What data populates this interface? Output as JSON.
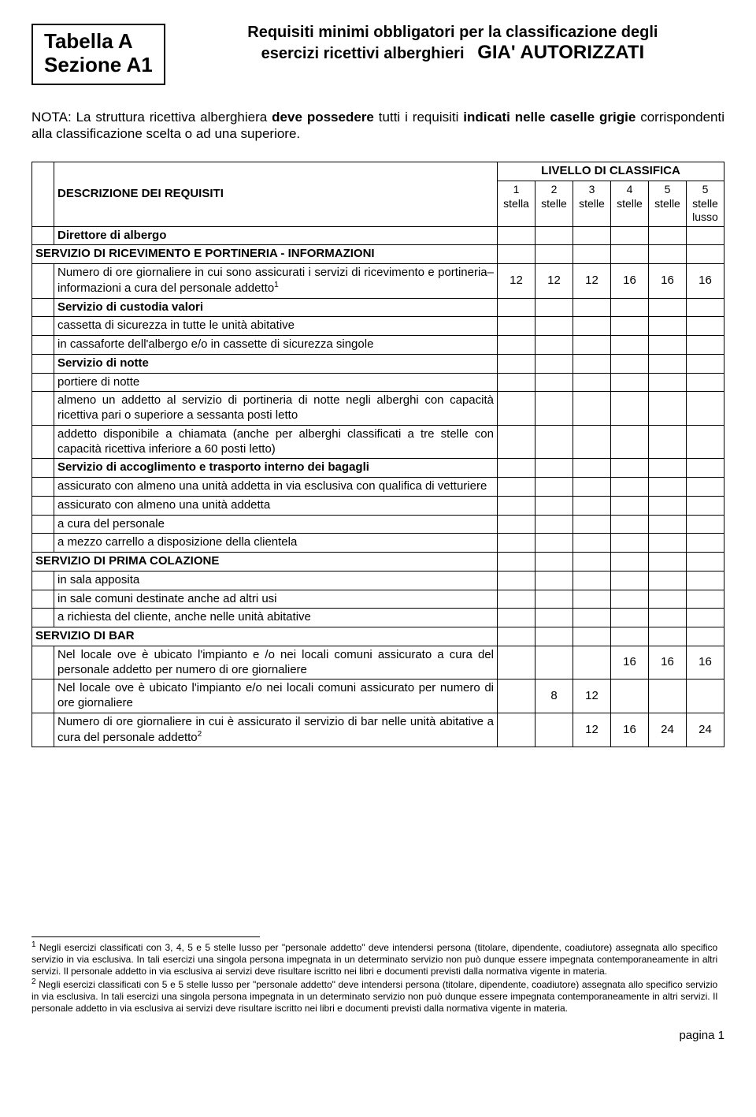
{
  "header": {
    "table_label": "Tabella  A",
    "section_label": "Sezione A1",
    "title_line1": "Requisiti minimi obbligatori per la classificazione degli",
    "title_line2_a": "esercizi ricettivi alberghieri",
    "title_line2_b": "GIA' AUTORIZZATI"
  },
  "note": {
    "prefix": "NOTA: La struttura ricettiva alberghiera ",
    "bold1": "deve possedere",
    "mid1": " tutti i requisiti ",
    "bold2": "indicati nelle caselle grigie",
    "suffix": " corrispondenti alla classificazione scelta o ad una superiore."
  },
  "table": {
    "desc_header": "DESCRIZIONE DEI REQUISITI",
    "level_header": "LIVELLO DI CLASSIFICA",
    "cols": [
      {
        "n": "1",
        "s": "stella"
      },
      {
        "n": "2",
        "s": "stelle"
      },
      {
        "n": "3",
        "s": "stelle"
      },
      {
        "n": "4",
        "s": "stelle"
      },
      {
        "n": "5",
        "s": "stelle"
      },
      {
        "n": "5",
        "s": "stelle lusso"
      }
    ],
    "rows": [
      {
        "type": "indent",
        "label": "Direttore di albergo",
        "bold": true,
        "vals": [
          "",
          "",
          "",
          "",
          "",
          ""
        ]
      },
      {
        "type": "full",
        "label": "SERVIZIO DI RICEVIMENTO E PORTINERIA - INFORMAZIONI",
        "bold": true,
        "vals": [
          "",
          "",
          "",
          "",
          "",
          ""
        ]
      },
      {
        "type": "indent",
        "label": "Numero di ore giornaliere in cui sono assicurati i servizi di ricevimento e portineria–informazioni a cura del personale addetto",
        "sup": "1",
        "justify": true,
        "vals": [
          "12",
          "12",
          "12",
          "16",
          "16",
          "16"
        ]
      },
      {
        "type": "indent",
        "label": "Servizio di custodia valori",
        "bold": true,
        "vals": [
          "",
          "",
          "",
          "",
          "",
          ""
        ]
      },
      {
        "type": "indent",
        "label": "cassetta di sicurezza in tutte le unità abitative",
        "vals": [
          "",
          "",
          "",
          "",
          "",
          ""
        ]
      },
      {
        "type": "indent",
        "label": "in cassaforte dell'albergo e/o in cassette di sicurezza singole",
        "vals": [
          "",
          "",
          "",
          "",
          "",
          ""
        ]
      },
      {
        "type": "indent",
        "label": "Servizio di notte",
        "bold": true,
        "vals": [
          "",
          "",
          "",
          "",
          "",
          ""
        ]
      },
      {
        "type": "indent",
        "label": "portiere di notte",
        "vals": [
          "",
          "",
          "",
          "",
          "",
          ""
        ]
      },
      {
        "type": "indent",
        "label": "almeno un addetto al servizio di portineria di notte negli alberghi con capacità ricettiva pari o superiore a sessanta posti letto",
        "justify": true,
        "vals": [
          "",
          "",
          "",
          "",
          "",
          ""
        ]
      },
      {
        "type": "indent",
        "label": "addetto disponibile a chiamata (anche per alberghi classificati a tre stelle con capacità ricettiva inferiore a 60 posti letto)",
        "justify": true,
        "vals": [
          "",
          "",
          "",
          "",
          "",
          ""
        ]
      },
      {
        "type": "indent",
        "label": "Servizio di accoglimento e trasporto interno dei bagagli",
        "bold": true,
        "vals": [
          "",
          "",
          "",
          "",
          "",
          ""
        ]
      },
      {
        "type": "indent",
        "label": "assicurato con almeno una unità addetta in via esclusiva con qualifica di vetturiere",
        "vals": [
          "",
          "",
          "",
          "",
          "",
          ""
        ]
      },
      {
        "type": "indent",
        "label": "assicurato con almeno una unità addetta",
        "vals": [
          "",
          "",
          "",
          "",
          "",
          ""
        ]
      },
      {
        "type": "indent",
        "label": "a cura del personale",
        "vals": [
          "",
          "",
          "",
          "",
          "",
          ""
        ]
      },
      {
        "type": "indent",
        "label": "a mezzo carrello a disposizione della clientela",
        "vals": [
          "",
          "",
          "",
          "",
          "",
          ""
        ]
      },
      {
        "type": "full",
        "label": "SERVIZIO DI PRIMA COLAZIONE",
        "bold": true,
        "vals": [
          "",
          "",
          "",
          "",
          "",
          ""
        ]
      },
      {
        "type": "indent",
        "label": "in sala apposita",
        "vals": [
          "",
          "",
          "",
          "",
          "",
          ""
        ]
      },
      {
        "type": "indent",
        "label": "in sale comuni destinate anche ad altri usi",
        "vals": [
          "",
          "",
          "",
          "",
          "",
          ""
        ]
      },
      {
        "type": "indent",
        "label": "a richiesta del cliente, anche nelle unità abitative",
        "vals": [
          "",
          "",
          "",
          "",
          "",
          ""
        ]
      },
      {
        "type": "full",
        "label": "SERVIZIO DI BAR",
        "bold": true,
        "vals": [
          "",
          "",
          "",
          "",
          "",
          ""
        ]
      },
      {
        "type": "indent",
        "label": "Nel locale ove è ubicato l'impianto e /o nei locali comuni assicurato a cura del personale addetto per numero di ore giornaliere",
        "justify": true,
        "vals": [
          "",
          "",
          "",
          "16",
          "16",
          "16"
        ]
      },
      {
        "type": "indent",
        "label": "Nel locale ove è ubicato l'impianto e/o nei locali comuni assicurato per numero di ore giornaliere",
        "justify": true,
        "vals": [
          "",
          "8",
          "12",
          "",
          "",
          ""
        ]
      },
      {
        "type": "indent",
        "label": "Numero di ore giornaliere in cui è assicurato il servizio di bar nelle unità abitative a cura del personale addetto",
        "sup": "2",
        "justify": true,
        "vals": [
          "",
          "",
          "12",
          "16",
          "24",
          "24"
        ]
      }
    ]
  },
  "footnotes": [
    {
      "num": "1",
      "text": "Negli esercizi classificati con 3, 4, 5 e 5 stelle lusso per \"personale addetto\" deve intendersi persona (titolare, dipendente, coadiutore) assegnata allo specifico servizio in via esclusiva. In tali esercizi una singola persona impegnata in un determinato servizio non può dunque essere impegnata contemporaneamente in altri servizi. Il personale addetto in via esclusiva ai servizi deve risultare iscritto nei libri e documenti previsti dalla normativa vigente in materia."
    },
    {
      "num": "2",
      "text": "Negli esercizi classificati con  5 e 5 stelle lusso per \"personale addetto\" deve intendersi persona (titolare, dipendente, coadiutore) assegnata allo specifico servizio in via esclusiva. In tali esercizi una singola persona impegnata in un determinato servizio non può dunque essere impegnata contemporaneamente in altri servizi. Il personale addetto in via esclusiva ai servizi deve risultare iscritto nei libri e documenti previsti dalla normativa vigente in materia."
    }
  ],
  "page_number": "pagina 1",
  "colors": {
    "text": "#000000",
    "bg": "#ffffff",
    "border": "#000000"
  }
}
